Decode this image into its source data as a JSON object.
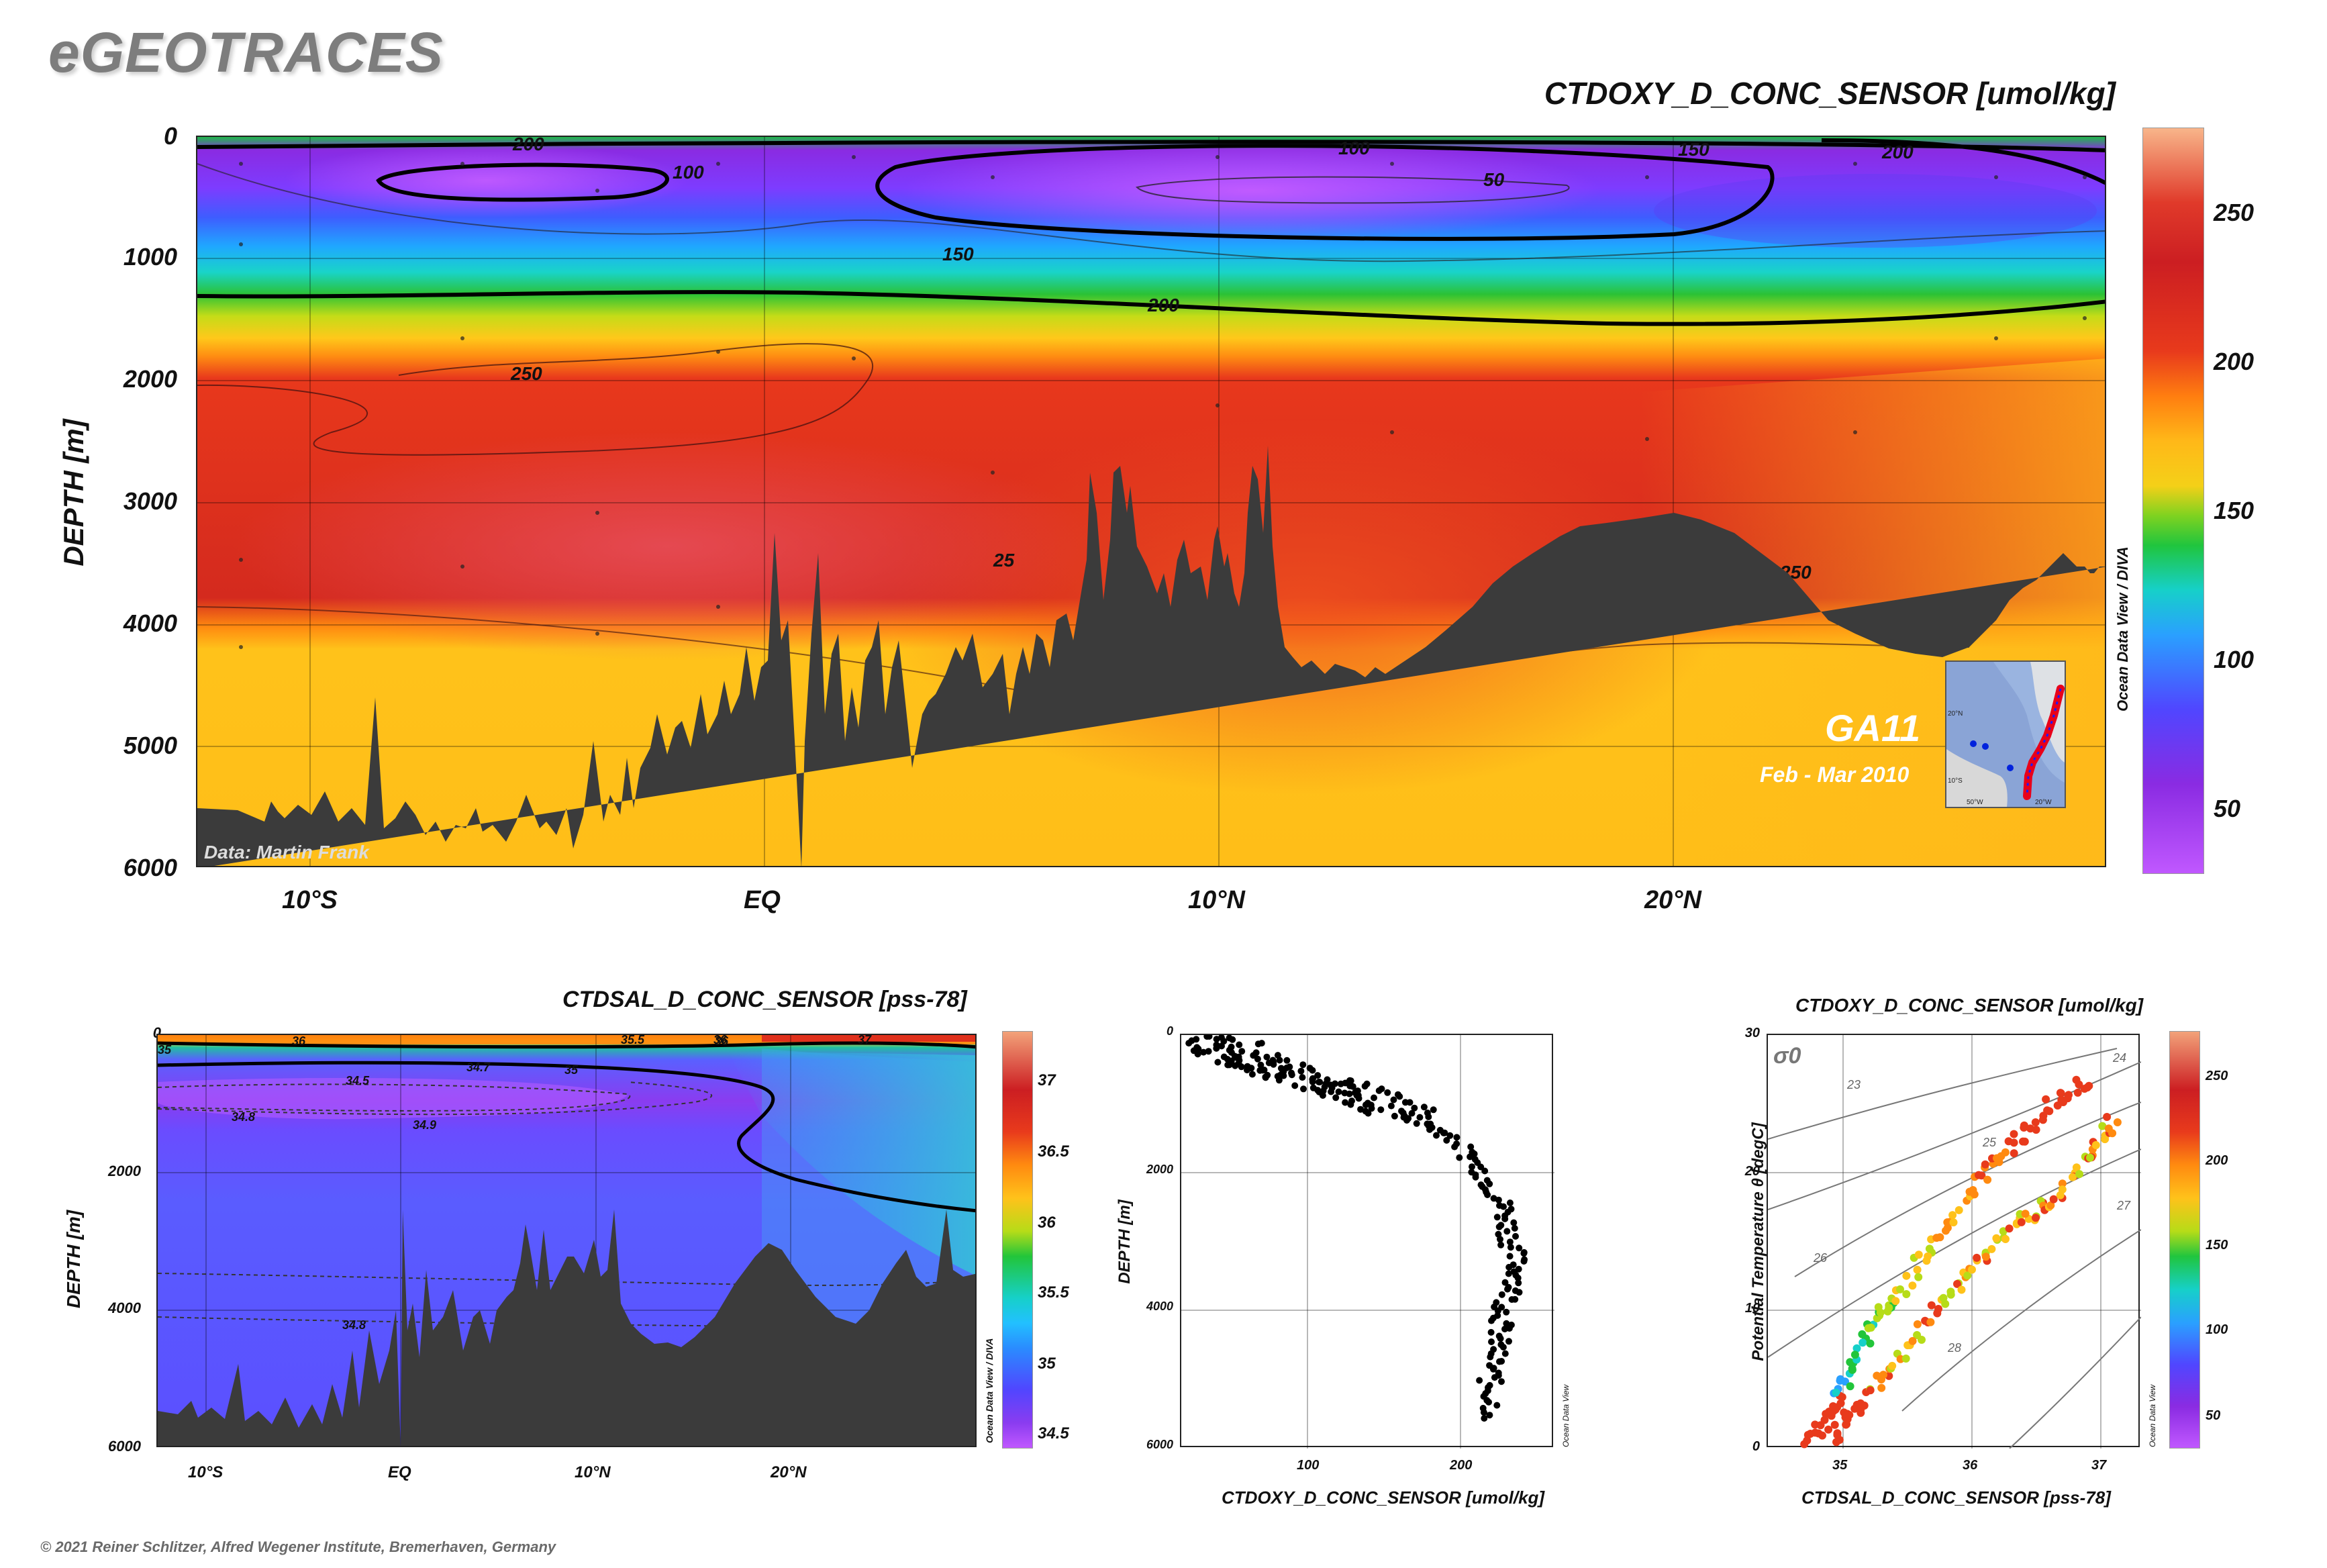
{
  "brand": "eGEOTRACES",
  "footer": "© 2021 Reiner Schlitzer, Alfred Wegener Institute, Bremerhaven, Germany",
  "odv_label": "Ocean Data View / DIVA",
  "odv_label_short": "Ocean Data View",
  "colors": {
    "seafloor": "#3b3b3b",
    "scale_stops": [
      "#c55bff",
      "#8a2be2",
      "#5046ff",
      "#2f9cff",
      "#18d4cf",
      "#22c53a",
      "#b6dc18",
      "#ffc21a",
      "#ff8a10",
      "#e83a1c",
      "#cc1e22",
      "#f2a27a"
    ]
  },
  "main": {
    "title": "CTDOXY_D_CONC_SENSOR [umol/kg]",
    "ylabel": "DEPTH [m]",
    "yticks": [
      "0",
      "1000",
      "2000",
      "3000",
      "4000",
      "5000",
      "6000"
    ],
    "xticks": [
      "10°S",
      "EQ",
      "10°N",
      "20°N"
    ],
    "colorbar_ticks": [
      "250",
      "200",
      "150",
      "100",
      "50"
    ],
    "colorbar_range": [
      30,
      280
    ],
    "contour_labels": [
      "200",
      "100",
      "100",
      "150",
      "200",
      "50",
      "150",
      "200",
      "250",
      "25",
      "250"
    ],
    "credit": "Data: Martin Frank",
    "section": "GA11",
    "dates": "Feb - Mar 2010",
    "inset_ticks": [
      "20°N",
      "10°S",
      "50°W",
      "20°W"
    ]
  },
  "salinity": {
    "title": "CTDSAL_D_CONC_SENSOR [pss-78]",
    "ylabel": "DEPTH [m]",
    "yticks": [
      "0",
      "2000",
      "4000",
      "6000"
    ],
    "xticks": [
      "10°S",
      "EQ",
      "10°N",
      "20°N"
    ],
    "colorbar_ticks": [
      "37",
      "36.5",
      "36",
      "35.5",
      "35",
      "34.5"
    ],
    "contour_labels": [
      "36",
      "36",
      "35.5",
      "36",
      "37",
      "34.5",
      "34.7",
      "35",
      "34.8",
      "34.9",
      "34.8",
      "35"
    ]
  },
  "profile": {
    "xlabel": "CTDOXY_D_CONC_SENSOR [umol/kg]",
    "ylabel": "DEPTH [m]",
    "yticks": [
      "0",
      "2000",
      "4000",
      "6000"
    ],
    "xticks": [
      "100",
      "200"
    ]
  },
  "ts": {
    "title": "CTDOXY_D_CONC_SENSOR [umol/kg]",
    "xlabel": "CTDSAL_D_CONC_SENSOR [pss-78]",
    "ylabel": "Potential Temperature θ [degC]",
    "yticks": [
      "30",
      "20",
      "10",
      "0"
    ],
    "xticks": [
      "35",
      "36",
      "37"
    ],
    "sigma_label": "σ0",
    "isopycnal_labels": [
      "23",
      "24",
      "25",
      "26",
      "27",
      "28"
    ],
    "colorbar_ticks": [
      "250",
      "200",
      "150",
      "100",
      "50"
    ]
  },
  "chart_data": [
    {
      "type": "heatmap",
      "title": "CTDOXY_D_CONC_SENSOR [umol/kg]",
      "ylabel": "DEPTH [m]",
      "xlim": [
        -12.5,
        29.5
      ],
      "ylim": [
        6000,
        0
      ],
      "colorbar_range": [
        30,
        280
      ],
      "x_ticks": [
        "10°S",
        "EQ",
        "10°N",
        "20°N"
      ],
      "contour_levels": [
        50,
        100,
        150,
        200,
        250
      ],
      "sections": [
        {
          "depth_range": [
            0,
            100
          ],
          "value_approx": 200
        },
        {
          "depth_range": [
            100,
            800
          ],
          "value_approx": 70
        },
        {
          "depth_range": [
            800,
            1300
          ],
          "value_approx": 150
        },
        {
          "depth_range": [
            1300,
            1800
          ],
          "value_approx": 205
        },
        {
          "depth_range": [
            1800,
            4000
          ],
          "value_approx": 255
        },
        {
          "depth_range": [
            4000,
            6000
          ],
          "value_approx": 225
        }
      ],
      "bathymetry": {
        "lat": [
          -12.5,
          -10,
          -8,
          -6,
          -4,
          -2,
          -1,
          0,
          1,
          2,
          4,
          5.5,
          7,
          9,
          10,
          12,
          14,
          16,
          18,
          20,
          22,
          24,
          25.5,
          27,
          28,
          29.5
        ],
        "depth": [
          5500,
          5600,
          5300,
          5400,
          5000,
          4600,
          3000,
          4500,
          5000,
          4800,
          4200,
          2800,
          3800,
          3500,
          4700,
          4800,
          4300,
          3500,
          3150,
          3900,
          4250,
          3400,
          3000,
          3700,
          2200,
          3500
        ]
      }
    },
    {
      "type": "heatmap",
      "title": "CTDSAL_D_CONC_SENSOR [pss-78]",
      "ylabel": "DEPTH [m]",
      "ylim": [
        6000,
        0
      ],
      "colorbar_ticks": [
        37,
        36.5,
        36,
        35.5,
        35,
        34.5
      ],
      "x_ticks": [
        "10°S",
        "EQ",
        "10°N",
        "20°N"
      ]
    },
    {
      "type": "scatter",
      "xlabel": "CTDOXY_D_CONC_SENSOR [umol/kg]",
      "ylabel": "DEPTH [m]",
      "xlim": [
        20,
        280
      ],
      "ylim": [
        6000,
        0
      ],
      "x_ticks": [
        100,
        200
      ],
      "y_ticks": [
        0,
        2000,
        4000,
        6000
      ],
      "profile_points": [
        [
          40,
          0
        ],
        [
          60,
          300
        ],
        [
          90,
          500
        ],
        [
          120,
          700
        ],
        [
          150,
          900
        ],
        [
          180,
          1200
        ],
        [
          210,
          1500
        ],
        [
          230,
          2000
        ],
        [
          245,
          2500
        ],
        [
          250,
          3000
        ],
        [
          255,
          3500
        ],
        [
          245,
          4000
        ],
        [
          240,
          4500
        ],
        [
          235,
          5000
        ],
        [
          238,
          5600
        ]
      ]
    },
    {
      "type": "scatter",
      "title": "CTDOXY_D_CONC_SENSOR [umol/kg]",
      "xlabel": "CTDSAL_D_CONC_SENSOR [pss-78]",
      "ylabel": "Potential Temperature θ [degC]",
      "xlim": [
        34.4,
        37.3
      ],
      "ylim": [
        0,
        30
      ],
      "x_ticks": [
        35,
        36,
        37
      ],
      "y_ticks": [
        0,
        10,
        20,
        30
      ],
      "isopycnals": [
        23,
        24,
        25,
        26,
        27,
        28
      ],
      "branches": [
        {
          "points": [
            [
              34.7,
              0.5
            ],
            [
              34.9,
              2.5
            ],
            [
              35.0,
              5
            ],
            [
              35.2,
              9
            ],
            [
              35.4,
              11
            ],
            [
              35.7,
              15
            ],
            [
              36.0,
              19
            ],
            [
              36.3,
              22
            ],
            [
              36.6,
              25
            ],
            [
              36.9,
              27
            ]
          ],
          "oxygen": 130
        },
        {
          "points": [
            [
              34.9,
              0.5
            ],
            [
              35.1,
              3
            ],
            [
              35.4,
              6
            ],
            [
              35.7,
              10
            ],
            [
              36.0,
              13
            ],
            [
              36.3,
              16
            ],
            [
              36.6,
              18
            ],
            [
              36.9,
              21
            ],
            [
              37.1,
              24
            ]
          ],
          "oxygen": 220
        }
      ]
    }
  ]
}
